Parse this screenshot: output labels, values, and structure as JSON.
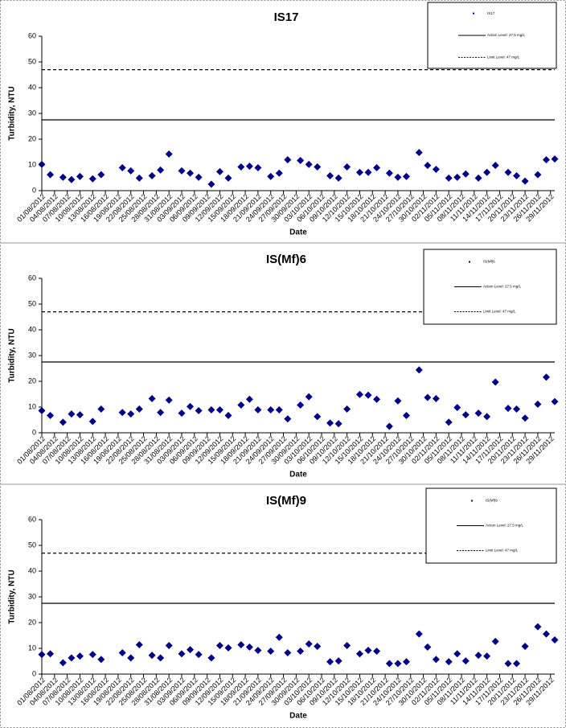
{
  "chart_data": [
    {
      "type": "scatter",
      "title": "IS17",
      "x_label": "Date",
      "y_label": "Turbidity, NTU",
      "x": [
        "01/08/2012",
        "03/08/2012",
        "06/08/2012",
        "08/08/2012",
        "10/08/2012",
        "13/08/2012",
        "15/08/2012",
        "20/08/2012",
        "22/08/2012",
        "24/08/2012",
        "27/08/2012",
        "29/08/2012",
        "31/08/2012",
        "03/09/2012",
        "05/09/2012",
        "07/09/2012",
        "10/09/2012",
        "12/09/2012",
        "14/09/2012",
        "17/09/2012",
        "19/09/2012",
        "21/09/2012",
        "24/09/2012",
        "26/09/2012",
        "28/09/2012",
        "01/10/2012",
        "03/10/2012",
        "05/10/2012",
        "08/10/2012",
        "10/10/2012",
        "12/10/2012",
        "15/10/2012",
        "17/10/2012",
        "19/10/2012",
        "22/10/2012",
        "24/10/2012",
        "26/10/2012",
        "29/10/2012",
        "31/10/2012",
        "02/11/2012",
        "05/11/2012",
        "07/11/2012",
        "09/11/2012",
        "12/11/2012",
        "14/11/2012",
        "16/11/2012",
        "19/11/2012",
        "21/11/2012",
        "23/11/2012",
        "26/11/2012",
        "28/11/2012",
        "30/11/2012"
      ],
      "series": [
        {
          "name": "IS17",
          "color": "#00008b",
          "values": [
            10.2,
            6.2,
            5.2,
            4.3,
            5.5,
            4.6,
            6.2,
            8.9,
            7.7,
            4.9,
            5.8,
            8,
            14.2,
            7.7,
            6.8,
            5.2,
            2.5,
            7.4,
            4.9,
            9.2,
            9.5,
            8.9,
            5.5,
            6.8,
            12,
            11.7,
            10.2,
            9.2,
            5.8,
            4.9,
            9.2,
            7.1,
            7.1,
            8.9,
            6.8,
            5.2,
            5.5,
            14.8,
            9.8,
            8.3,
            4.9,
            5.2,
            6.5,
            4.9,
            7.1,
            9.8,
            7.1,
            5.8,
            3.7,
            6.2,
            12,
            12.3
          ]
        }
      ],
      "reference_lines": [
        {
          "name": "Action Level: 27.5 mg/L",
          "value": 27.5,
          "style": "solid"
        },
        {
          "name": "Limit Level: 47 mg/L",
          "value": 47,
          "style": "dashed"
        }
      ],
      "xlim": [
        "01/08/2012",
        "30/11/2012"
      ],
      "xticks": [
        "01/08/2012",
        "04/08/2012",
        "07/08/2012",
        "10/08/2012",
        "13/08/2012",
        "16/08/2012",
        "19/08/2012",
        "22/08/2012",
        "25/08/2012",
        "28/08/2012",
        "31/08/2012",
        "03/09/2012",
        "06/09/2012",
        "09/09/2012",
        "12/09/2012",
        "15/09/2012",
        "18/09/2012",
        "21/09/2012",
        "24/09/2012",
        "27/09/2012",
        "30/09/2012",
        "03/10/2012",
        "06/10/2012",
        "09/10/2012",
        "12/10/2012",
        "15/10/2012",
        "18/10/2012",
        "21/10/2012",
        "24/10/2012",
        "27/10/2012",
        "30/10/2012",
        "02/11/2012",
        "05/11/2012",
        "08/11/2012",
        "11/11/2012",
        "14/11/2012",
        "17/11/2012",
        "20/11/2012",
        "23/11/2012",
        "26/11/2012",
        "29/11/2012"
      ],
      "ylim": [
        0,
        60
      ],
      "yticks": [
        0,
        10,
        20,
        30,
        40,
        50,
        60
      ],
      "grid": false
    },
    {
      "type": "scatter",
      "title": "IS(Mf)6",
      "x_label": "Date",
      "y_label": "Turbidity, NTU",
      "x": [
        "01/08/2012",
        "03/08/2012",
        "06/08/2012",
        "08/08/2012",
        "10/08/2012",
        "13/08/2012",
        "15/08/2012",
        "20/08/2012",
        "22/08/2012",
        "24/08/2012",
        "27/08/2012",
        "29/08/2012",
        "31/08/2012",
        "03/09/2012",
        "05/09/2012",
        "07/09/2012",
        "10/09/2012",
        "12/09/2012",
        "14/09/2012",
        "17/09/2012",
        "19/09/2012",
        "21/09/2012",
        "24/09/2012",
        "26/09/2012",
        "28/09/2012",
        "01/10/2012",
        "03/10/2012",
        "05/10/2012",
        "08/10/2012",
        "10/10/2012",
        "12/10/2012",
        "15/10/2012",
        "17/10/2012",
        "19/10/2012",
        "22/10/2012",
        "24/10/2012",
        "26/10/2012",
        "29/10/2012",
        "31/10/2012",
        "02/11/2012",
        "05/11/2012",
        "07/11/2012",
        "09/11/2012",
        "12/11/2012",
        "14/11/2012",
        "16/11/2012",
        "19/11/2012",
        "21/11/2012",
        "23/11/2012",
        "26/11/2012",
        "28/11/2012",
        "30/11/2012"
      ],
      "series": [
        {
          "name": "IS(Mf)6",
          "color": "#00008b",
          "values": [
            8.6,
            6.7,
            4.1,
            7.3,
            7,
            4.4,
            9.2,
            7.9,
            7.3,
            9.2,
            13.3,
            7.9,
            12.7,
            7.6,
            10.2,
            8.6,
            8.9,
            8.9,
            6.7,
            10.8,
            13,
            8.9,
            8.9,
            8.9,
            5.4,
            10.8,
            14,
            6.3,
            3.8,
            3.5,
            9.2,
            14.9,
            14.6,
            13,
            2.5,
            12.4,
            6.7,
            24.4,
            13.7,
            13.3,
            4.1,
            9.8,
            7,
            7.6,
            6.3,
            19.7,
            9.5,
            9.2,
            5.7,
            11.1,
            21.6,
            12.1
          ]
        }
      ],
      "reference_lines": [
        {
          "name": "Action Level: 27.5 mg/L",
          "value": 27.5,
          "style": "solid"
        },
        {
          "name": "Limit Level: 47 mg/L",
          "value": 47,
          "style": "dashed"
        }
      ],
      "xlim": [
        "01/08/2012",
        "30/11/2012"
      ],
      "xticks": [
        "01/08/2012",
        "04/08/2012",
        "07/08/2012",
        "10/08/2012",
        "13/08/2012",
        "16/08/2012",
        "19/08/2012",
        "22/08/2012",
        "25/08/2012",
        "28/08/2012",
        "31/08/2012",
        "03/09/2012",
        "06/09/2012",
        "09/09/2012",
        "12/09/2012",
        "15/09/2012",
        "18/09/2012",
        "21/09/2012",
        "24/09/2012",
        "27/09/2012",
        "30/09/2012",
        "03/10/2012",
        "06/10/2012",
        "09/10/2012",
        "12/10/2012",
        "15/10/2012",
        "18/10/2012",
        "21/10/2012",
        "24/10/2012",
        "27/10/2012",
        "30/10/2012",
        "02/11/2012",
        "05/11/2012",
        "08/11/2012",
        "11/11/2012",
        "14/11/2012",
        "17/11/2012",
        "20/11/2012",
        "23/11/2012",
        "26/11/2012",
        "29/11/2012"
      ],
      "ylim": [
        0,
        60
      ],
      "yticks": [
        0,
        10,
        20,
        30,
        40,
        50,
        60
      ],
      "grid": false
    },
    {
      "type": "scatter",
      "title": "IS(Mf)9",
      "x_label": "Date",
      "y_label": "Turbidity, NTU",
      "x": [
        "01/08/2012",
        "03/08/2012",
        "06/08/2012",
        "08/08/2012",
        "10/08/2012",
        "13/08/2012",
        "15/08/2012",
        "20/08/2012",
        "22/08/2012",
        "24/08/2012",
        "27/08/2012",
        "29/08/2012",
        "31/08/2012",
        "03/09/2012",
        "05/09/2012",
        "07/09/2012",
        "10/09/2012",
        "12/09/2012",
        "14/09/2012",
        "17/09/2012",
        "19/09/2012",
        "21/09/2012",
        "24/09/2012",
        "26/09/2012",
        "28/09/2012",
        "01/10/2012",
        "03/10/2012",
        "05/10/2012",
        "08/10/2012",
        "10/10/2012",
        "12/10/2012",
        "15/10/2012",
        "17/10/2012",
        "19/10/2012",
        "22/10/2012",
        "24/10/2012",
        "26/10/2012",
        "29/10/2012",
        "31/10/2012",
        "02/11/2012",
        "05/11/2012",
        "07/11/2012",
        "09/11/2012",
        "12/11/2012",
        "14/11/2012",
        "16/11/2012",
        "19/11/2012",
        "21/11/2012",
        "23/11/2012",
        "26/11/2012",
        "28/11/2012",
        "30/11/2012"
      ],
      "series": [
        {
          "name": "IS(Mf)9",
          "color": "#00008b",
          "values": [
            7.6,
            7.9,
            4.4,
            6.3,
            7,
            7.6,
            5.7,
            8.3,
            6.3,
            11.4,
            7.3,
            6.3,
            11.1,
            7.9,
            9.5,
            7.6,
            6.3,
            11.1,
            10.2,
            11.4,
            10.5,
            9.2,
            8.9,
            14.3,
            8.3,
            8.9,
            11.7,
            10.8,
            4.8,
            5.1,
            11.1,
            7.9,
            9.2,
            8.9,
            4.1,
            4.1,
            4.8,
            15.6,
            10.5,
            5.7,
            4.8,
            7.9,
            5.1,
            7.3,
            7,
            12.7,
            4.1,
            4.1,
            10.8,
            18.4,
            15.6,
            13.3
          ]
        }
      ],
      "reference_lines": [
        {
          "name": "Action Level: 27.5 mg/L",
          "value": 27.5,
          "style": "solid"
        },
        {
          "name": "Limit Level: 47 mg/L",
          "value": 47,
          "style": "dashed"
        }
      ],
      "xlim": [
        "01/08/2012",
        "30/11/2012"
      ],
      "xticks": [
        "01/08/2012",
        "04/08/2012",
        "07/08/2012",
        "10/08/2012",
        "13/08/2012",
        "16/08/2012",
        "19/08/2012",
        "22/08/2012",
        "25/08/2012",
        "28/08/2012",
        "31/08/2012",
        "03/09/2012",
        "06/09/2012",
        "09/09/2012",
        "12/09/2012",
        "15/09/2012",
        "18/09/2012",
        "21/09/2012",
        "24/09/2012",
        "27/09/2012",
        "30/09/2012",
        "03/10/2012",
        "06/10/2012",
        "09/10/2012",
        "12/10/2012",
        "15/10/2012",
        "18/10/2012",
        "21/10/2012",
        "24/10/2012",
        "27/10/2012",
        "30/10/2012",
        "02/11/2012",
        "05/11/2012",
        "08/11/2012",
        "11/11/2012",
        "14/11/2012",
        "17/11/2012",
        "20/11/2012",
        "23/11/2012",
        "26/11/2012",
        "29/11/2012"
      ],
      "ylim": [
        0,
        60
      ],
      "yticks": [
        0,
        10,
        20,
        30,
        40,
        50,
        60
      ],
      "grid": false
    }
  ]
}
